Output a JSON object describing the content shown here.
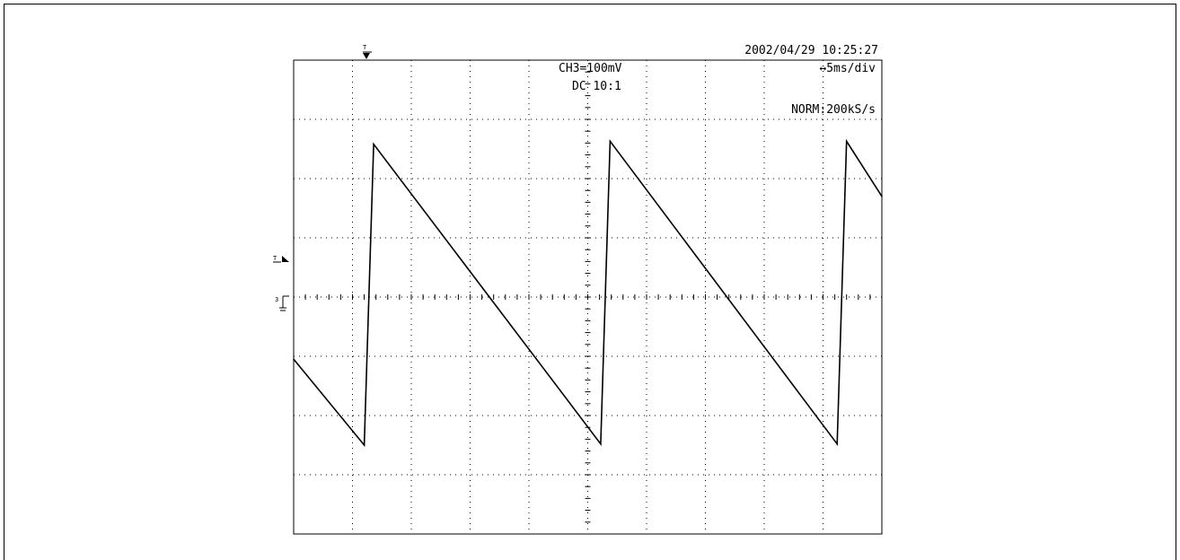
{
  "scope": {
    "timestamp": "2002/04/29  10:25:27",
    "channel_scale": "CH3=100mV",
    "coupling": "DC  10:1",
    "timebase": "↔5ms/div",
    "acquisition": "NORM:200kS/s",
    "trigger_marker": "T",
    "trigger_level_marker": "T",
    "channel_marker": "3"
  },
  "chart_data": {
    "type": "line",
    "title": "",
    "xlabel": "",
    "ylabel": "",
    "x_units": "ms",
    "y_units": "mV",
    "x_divisions": 10,
    "y_divisions": 8,
    "xlim": [
      0,
      50
    ],
    "ylim": [
      -400,
      400
    ],
    "grid": true,
    "series": [
      {
        "name": "",
        "color": "#000000",
        "x": [
          0.0,
          6.0,
          6.8,
          26.1,
          26.9,
          46.2,
          47.0,
          50.0
        ],
        "y": [
          -105,
          -250,
          258,
          -248,
          263,
          -248,
          263,
          170
        ]
      }
    ]
  }
}
